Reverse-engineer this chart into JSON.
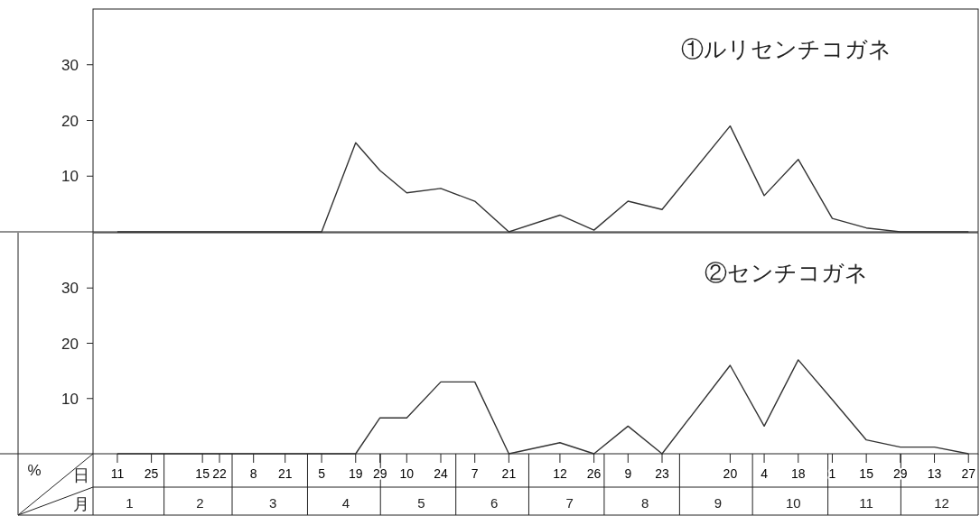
{
  "chart_data": [
    {
      "type": "line",
      "title": "①ルリセンチコガネ",
      "x": [
        "--01-11",
        "--01-25",
        "--02-15",
        "--02-22",
        "--03-08",
        "--03-21",
        "--04-05",
        "--04-19",
        "--04-29",
        "--05-10",
        "--05-24",
        "--06-07",
        "--06-21",
        "--07-12",
        "--07-26",
        "--08-09",
        "--08-23",
        "--09-20",
        "--10-04",
        "--10-18",
        "--11-01",
        "--11-15",
        "--11-29",
        "--12-13",
        "--12-27"
      ],
      "series": [
        {
          "color": "#333333",
          "values": [
            0,
            0,
            0,
            0,
            0,
            0,
            0,
            16,
            11,
            7,
            7.8,
            5.5,
            0,
            3,
            0.3,
            5.5,
            4,
            19,
            6.5,
            13,
            2.4,
            0.7,
            0,
            0,
            0
          ]
        }
      ],
      "xlim": [
        "--01-01",
        "--12-31"
      ],
      "ylim": [
        0,
        40
      ],
      "yticks": [
        10,
        20,
        30
      ],
      "tick_labels": "y",
      "grid": false,
      "marker": "none",
      "line_style": "solid"
    },
    {
      "type": "line",
      "title": "②センチコガネ",
      "ylabel": "%",
      "xlabel": "日",
      "x2label": "月",
      "x": [
        "--01-11",
        "--01-25",
        "--02-15",
        "--02-22",
        "--03-08",
        "--03-21",
        "--04-05",
        "--04-19",
        "--04-29",
        "--05-10",
        "--05-24",
        "--06-07",
        "--06-21",
        "--07-12",
        "--07-26",
        "--08-09",
        "--08-23",
        "--09-20",
        "--10-04",
        "--10-18",
        "--11-01",
        "--11-15",
        "--11-29",
        "--12-13",
        "--12-27"
      ],
      "series": [
        {
          "color": "#333333",
          "values": [
            0,
            0,
            0,
            0,
            0,
            0,
            0,
            0,
            6.5,
            6.5,
            13,
            13,
            0,
            2,
            0,
            5,
            0,
            16,
            5,
            17,
            9.8,
            2.5,
            1.2,
            1.2,
            0
          ]
        }
      ],
      "xlim": [
        "--01-01",
        "--12-31"
      ],
      "ylim": [
        0,
        40
      ],
      "yticks": [
        10,
        20,
        30
      ],
      "xticks": [
        {
          "value": "--01-11",
          "label": "11"
        },
        {
          "value": "--01-25",
          "label": "25"
        },
        {
          "value": "--02-15",
          "label": "15"
        },
        {
          "value": "--02-22",
          "label": "22"
        },
        {
          "value": "--03-08",
          "label": "8"
        },
        {
          "value": "--03-21",
          "label": "21"
        },
        {
          "value": "--04-05",
          "label": "5"
        },
        {
          "value": "--04-19",
          "label": "19"
        },
        {
          "value": "--04-29",
          "label": "29"
        },
        {
          "value": "--05-10",
          "label": "10"
        },
        {
          "value": "--05-24",
          "label": "24"
        },
        {
          "value": "--06-07",
          "label": "7"
        },
        {
          "value": "--06-21",
          "label": "21"
        },
        {
          "value": "--07-12",
          "label": "12"
        },
        {
          "value": "--07-26",
          "label": "26"
        },
        {
          "value": "--08-09",
          "label": "9"
        },
        {
          "value": "--08-23",
          "label": "23"
        },
        {
          "value": "--09-20",
          "label": "20"
        },
        {
          "value": "--10-04",
          "label": "4"
        },
        {
          "value": "--10-18",
          "label": "18"
        },
        {
          "value": "--11-01",
          "label": "1"
        },
        {
          "value": "--11-15",
          "label": "15"
        },
        {
          "value": "--11-29",
          "label": "29"
        },
        {
          "value": "--12-13",
          "label": "13"
        },
        {
          "value": "--12-27",
          "label": "27"
        }
      ],
      "x2ticks": [
        {
          "value": "--01-16",
          "label": "1"
        },
        {
          "value": "--02-14",
          "label": "2"
        },
        {
          "value": "--03-16",
          "label": "3"
        },
        {
          "value": "--04-15",
          "label": "4"
        },
        {
          "value": "--05-16",
          "label": "5"
        },
        {
          "value": "--06-15",
          "label": "6"
        },
        {
          "value": "--07-16",
          "label": "7"
        },
        {
          "value": "--08-16",
          "label": "8"
        },
        {
          "value": "--09-15",
          "label": "9"
        },
        {
          "value": "--10-16",
          "label": "10"
        },
        {
          "value": "--11-15",
          "label": "11"
        },
        {
          "value": "--12-16",
          "label": "12"
        }
      ],
      "x2lim": [
        "--01-01",
        "--12-31"
      ],
      "grid": false,
      "marker": "none",
      "line_style": "solid"
    }
  ]
}
